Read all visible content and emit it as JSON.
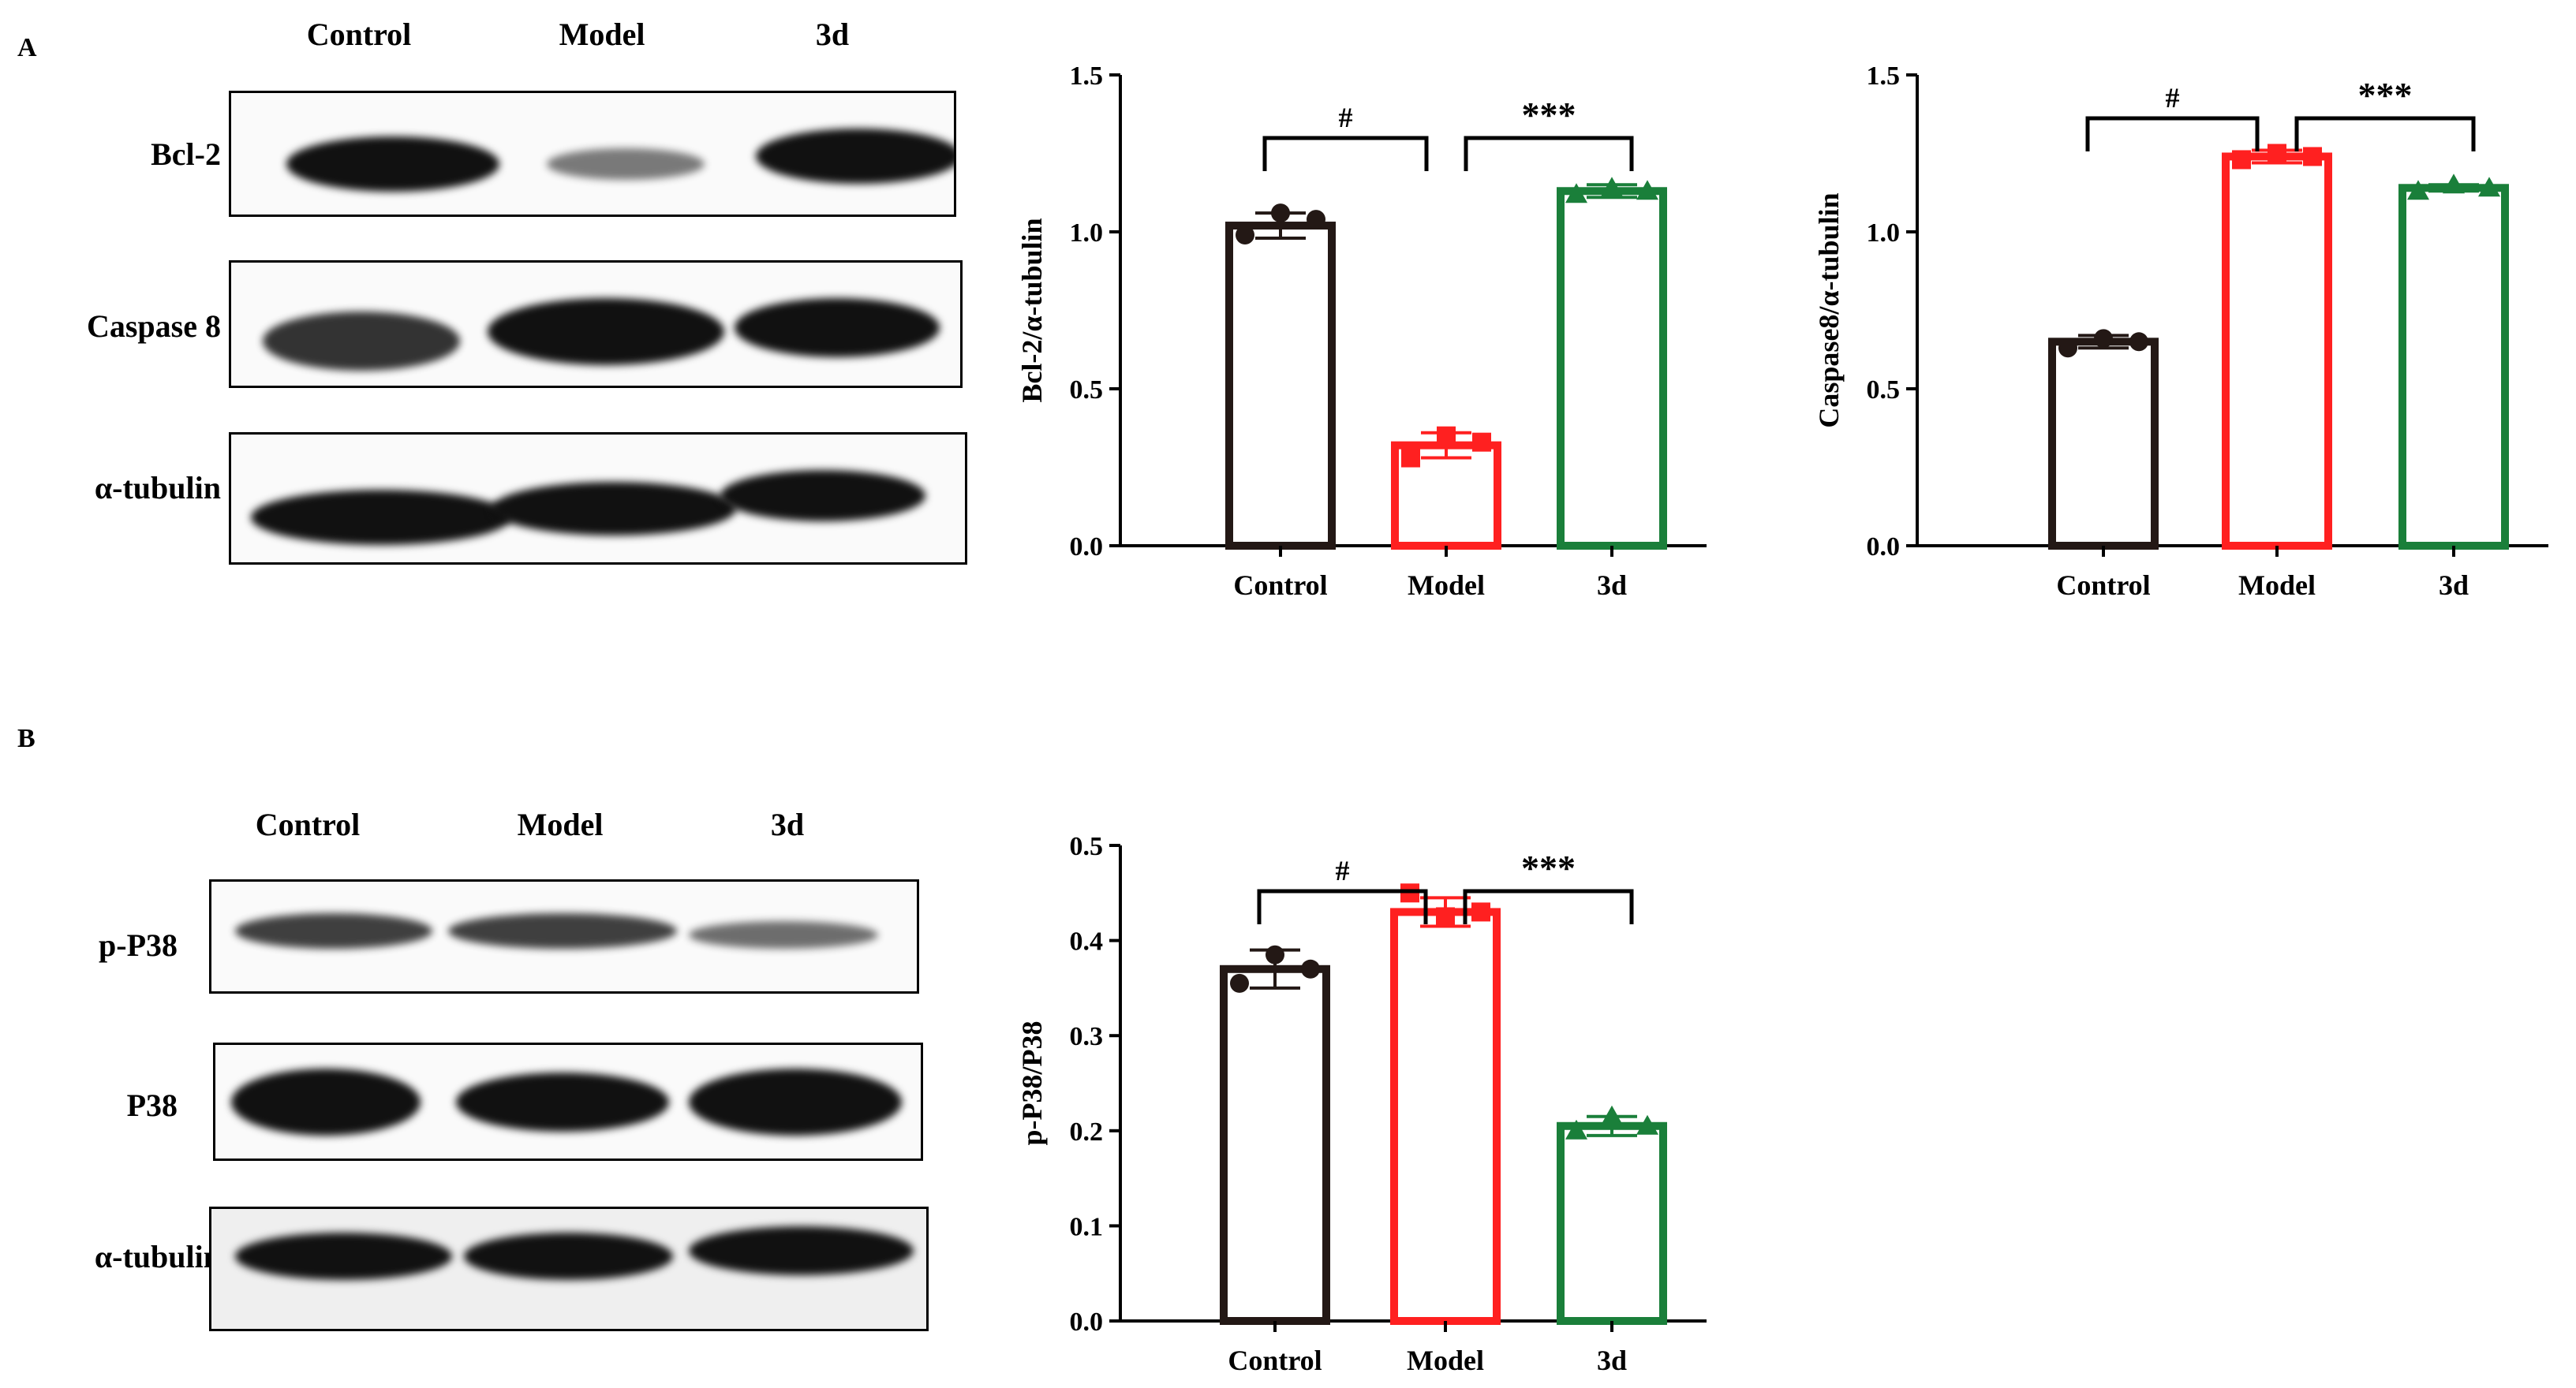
{
  "panels": {
    "a": "A",
    "b": "B"
  },
  "blotA": {
    "lanes": [
      "Control",
      "Model",
      "3d"
    ],
    "rows": [
      "Bcl-2",
      "Caspase 8",
      "α-tubulin"
    ]
  },
  "blotB": {
    "lanes": [
      "Control",
      "Model",
      "3d"
    ],
    "rows": [
      "p-P38",
      "P38",
      "α-tubulin"
    ]
  },
  "colors": {
    "control": "#231815",
    "model": "#ff2020",
    "d3": "#1a7f3a"
  },
  "chart_data": [
    {
      "type": "bar",
      "categories": [
        "Control",
        "Model",
        "3d"
      ],
      "values": [
        1.02,
        0.32,
        1.13
      ],
      "errors": [
        0.04,
        0.04,
        0.02
      ],
      "points": [
        [
          0.99,
          1.06,
          1.04
        ],
        [
          0.28,
          0.35,
          0.33
        ],
        [
          1.12,
          1.14,
          1.13
        ]
      ],
      "markers": [
        "circle",
        "square",
        "triangle"
      ],
      "ylabel": "Bcl-2/α-tubulin",
      "ylim": [
        0,
        1.5
      ],
      "yticks": [
        "0.0",
        "0.5",
        "1.0",
        "1.5"
      ],
      "significance": [
        {
          "from": 0,
          "to": 1,
          "label": "#"
        },
        {
          "from": 1,
          "to": 2,
          "label": "***"
        }
      ]
    },
    {
      "type": "bar",
      "categories": [
        "Control",
        "Model",
        "3d"
      ],
      "values": [
        0.65,
        1.24,
        1.14
      ],
      "errors": [
        0.02,
        0.02,
        0.01
      ],
      "points": [
        [
          0.63,
          0.66,
          0.65
        ],
        [
          1.23,
          1.25,
          1.24
        ],
        [
          1.13,
          1.15,
          1.14
        ]
      ],
      "markers": [
        "circle",
        "square",
        "triangle"
      ],
      "ylabel": "Caspase8/α-tubulin",
      "ylim": [
        0,
        1.5
      ],
      "yticks": [
        "0.0",
        "0.5",
        "1.0",
        "1.5"
      ],
      "significance": [
        {
          "from": 0,
          "to": 1,
          "label": "#"
        },
        {
          "from": 1,
          "to": 2,
          "label": "***"
        }
      ]
    },
    {
      "type": "bar",
      "categories": [
        "Control",
        "Model",
        "3d"
      ],
      "values": [
        0.37,
        0.43,
        0.205
      ],
      "errors": [
        0.02,
        0.015,
        0.01
      ],
      "points": [
        [
          0.355,
          0.385,
          0.37
        ],
        [
          0.45,
          0.425,
          0.43
        ],
        [
          0.2,
          0.215,
          0.205
        ]
      ],
      "markers": [
        "circle",
        "square",
        "triangle"
      ],
      "ylabel": "p-P38/P38",
      "ylim": [
        0,
        0.5
      ],
      "yticks": [
        "0.0",
        "0.1",
        "0.2",
        "0.3",
        "0.4",
        "0.5"
      ],
      "significance": [
        {
          "from": 0,
          "to": 1,
          "label": "#"
        },
        {
          "from": 1,
          "to": 2,
          "label": "***"
        }
      ]
    }
  ]
}
